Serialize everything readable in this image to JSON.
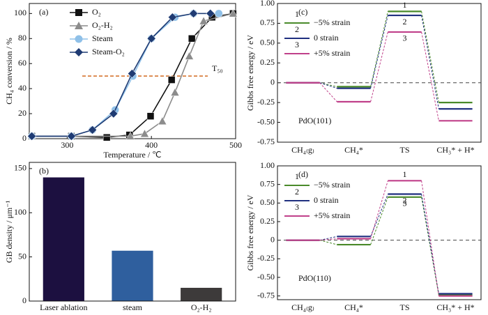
{
  "chart_data": [
    {
      "type": "line",
      "panel_label": "(a)",
      "x_label": "Temperature / ℃",
      "y_label": "CH₄ conversion / %",
      "xlim": [
        255,
        500
      ],
      "xticks": [
        300,
        400,
        500
      ],
      "ylim": [
        0,
        108
      ],
      "yticks": [
        0,
        20,
        40,
        60,
        80,
        100
      ],
      "legend": "upper left",
      "reference_line": {
        "label": "T₅₀",
        "value": 50,
        "color": "#d2691e"
      },
      "series": [
        {
          "name": "O₂",
          "color": "#111111",
          "marker": "square",
          "x": [
            258,
            305,
            347,
            374,
            399,
            424,
            448,
            472,
            497
          ],
          "values": [
            2,
            2,
            1,
            3,
            18,
            47,
            80,
            97,
            100
          ]
        },
        {
          "name": "O₂-H₂",
          "color": "#8c8c8c",
          "marker": "triangle",
          "x": [
            258,
            375,
            392,
            413,
            428,
            445,
            462,
            497
          ],
          "values": [
            2,
            2,
            4,
            14,
            37,
            66,
            94,
            100
          ]
        },
        {
          "name": "Steam",
          "color": "#8fc0e8",
          "marker": "circle",
          "x": [
            258,
            305,
            330,
            357,
            378,
            400,
            428,
            450,
            480
          ],
          "values": [
            2,
            2,
            7,
            23,
            50,
            80,
            97,
            100,
            100
          ]
        },
        {
          "name": "Steam-O₂",
          "color": "#1f3b73",
          "marker": "diamond",
          "x": [
            258,
            305,
            330,
            355,
            377,
            400,
            425,
            450,
            470
          ],
          "values": [
            2,
            2,
            7,
            20,
            52,
            80,
            97,
            100,
            100
          ]
        }
      ]
    },
    {
      "type": "bar",
      "panel_label": "(b)",
      "y_label": "GB density / μm⁻¹",
      "categories": [
        "Laser ablation",
        "steam",
        "O₂-H₂"
      ],
      "values": [
        140,
        57,
        15
      ],
      "colors": [
        "#1c1040",
        "#2f5f9e",
        "#3d3a3a"
      ],
      "ylim": [
        0,
        157
      ],
      "yticks": [
        0,
        50,
        100,
        150
      ]
    },
    {
      "type": "step",
      "panel_label": "(c)",
      "note": "PdO(101)",
      "y_label": "Gibbs free energy / eV",
      "categories": [
        "CH₄₍g₎",
        "CH₄*",
        "TS",
        "CH₃* + H*"
      ],
      "ylim": [
        -0.75,
        1.0
      ],
      "yticks": [
        -0.75,
        {
          "value": -0.5,
          "label": "-0.50"
        },
        -0.25,
        0,
        0.25,
        {
          "value": 0.5,
          "label": "0.50"
        },
        0.75,
        {
          "value": 1.0,
          "label": "1.00"
        }
      ],
      "ts_labels": [
        "1",
        "2",
        "3"
      ],
      "legend_numbers": [
        "1",
        "2",
        "3"
      ],
      "series": [
        {
          "name": "−5% strain",
          "color": "#4a8a2a",
          "values": [
            0,
            -0.05,
            0.9,
            -0.25
          ]
        },
        {
          "name": "0 strain",
          "color": "#1f2f7f",
          "values": [
            0,
            -0.07,
            0.85,
            -0.33
          ]
        },
        {
          "name": "+5% strain",
          "color": "#c0408a",
          "values": [
            0,
            -0.24,
            0.64,
            -0.48
          ]
        }
      ]
    },
    {
      "type": "step",
      "panel_label": "(d)",
      "note": "PdO(110)",
      "y_label": "Gibbs free energy / eV",
      "categories": [
        "CH₄₍g₎",
        "CH₄*",
        "TS",
        "CH₃* + H*"
      ],
      "ylim": [
        -0.8,
        1.0
      ],
      "yticks": [
        -0.75,
        {
          "value": -0.5,
          "label": "-0.50"
        },
        -0.25,
        0,
        0.25,
        {
          "value": 0.5,
          "label": "0.50"
        },
        0.75,
        {
          "value": 1.0,
          "label": "1.00"
        }
      ],
      "ts_labels": [
        "1",
        "2",
        "3"
      ],
      "legend_numbers": [
        "1",
        "2",
        "3"
      ],
      "series": [
        {
          "name": "−5% strain",
          "color": "#4a8a2a",
          "values": [
            0,
            -0.06,
            0.58,
            -0.74
          ]
        },
        {
          "name": "0 strain",
          "color": "#1f2f7f",
          "values": [
            0,
            0.05,
            0.62,
            -0.72
          ]
        },
        {
          "name": "+5% strain",
          "color": "#c0408a",
          "values": [
            0,
            0.02,
            0.8,
            -0.75
          ]
        }
      ]
    }
  ]
}
